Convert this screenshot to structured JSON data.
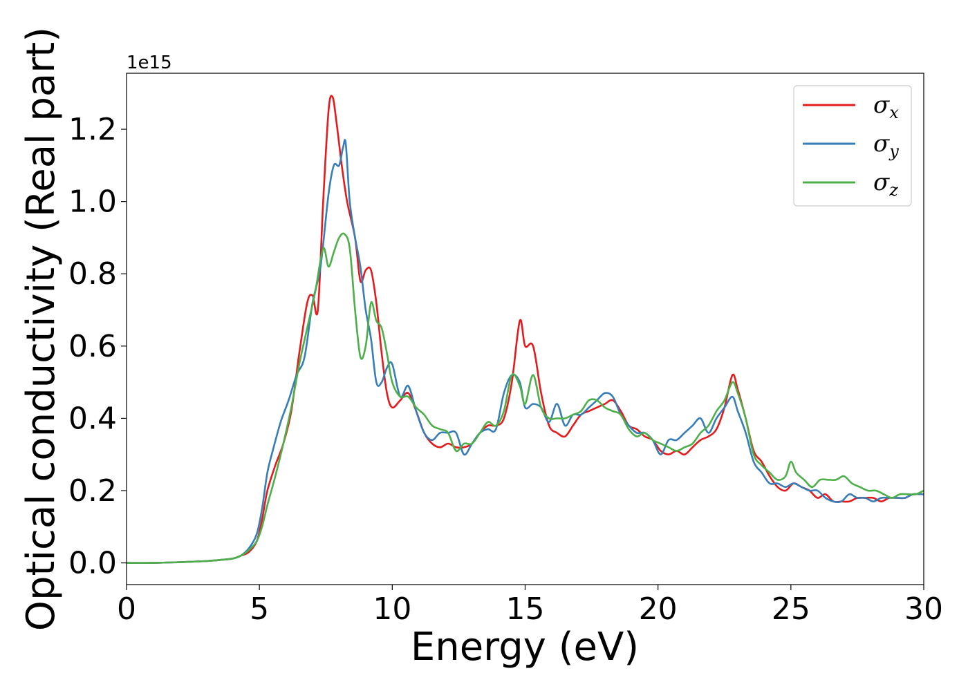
{
  "chart_data": {
    "type": "line",
    "title": "",
    "xlabel": "Energy (eV)",
    "ylabel": "Optical conductivity (Real part)",
    "y_offset_label": "1e15",
    "xlim": [
      0,
      30
    ],
    "ylim": [
      -0.06,
      1.355
    ],
    "xticks": [
      0,
      5,
      10,
      15,
      20,
      25,
      30
    ],
    "xtick_labels": [
      "0",
      "5",
      "10",
      "15",
      "20",
      "25",
      "30"
    ],
    "yticks": [
      0.0,
      0.2,
      0.4,
      0.6,
      0.8,
      1.0,
      1.2
    ],
    "ytick_labels": [
      "0.0",
      "0.2",
      "0.4",
      "0.6",
      "0.8",
      "1.0",
      "1.2"
    ],
    "grid": false,
    "legend_position": "top-right",
    "series": [
      {
        "name": "σx",
        "symbol": "σ",
        "subscript": "x",
        "color": "#e41a1c",
        "x": [
          0,
          1,
          2,
          3,
          3.5,
          4,
          4.3,
          4.6,
          4.9,
          5.1,
          5.3,
          5.6,
          5.9,
          6.2,
          6.5,
          6.8,
          7.0,
          7.2,
          7.4,
          7.6,
          7.75,
          7.9,
          8.1,
          8.3,
          8.6,
          8.8,
          9.0,
          9.2,
          9.4,
          9.6,
          9.8,
          10.0,
          10.3,
          10.6,
          10.9,
          11.2,
          11.5,
          11.8,
          12.1,
          12.4,
          12.7,
          13.0,
          13.3,
          13.6,
          13.9,
          14.2,
          14.5,
          14.8,
          15.0,
          15.3,
          15.6,
          15.9,
          16.2,
          16.5,
          16.8,
          17.1,
          17.4,
          17.7,
          18.0,
          18.3,
          18.6,
          18.9,
          19.2,
          19.5,
          19.8,
          20.1,
          20.4,
          20.7,
          21.0,
          21.3,
          21.6,
          21.9,
          22.2,
          22.5,
          22.8,
          23.0,
          23.3,
          23.6,
          23.9,
          24.2,
          24.5,
          24.8,
          25.1,
          25.4,
          25.7,
          26.0,
          26.3,
          26.6,
          26.9,
          27.2,
          27.5,
          27.8,
          28.1,
          28.4,
          28.7,
          29.0,
          29.3,
          29.6,
          30.0
        ],
        "y": [
          0.0,
          0.0,
          0.002,
          0.005,
          0.008,
          0.012,
          0.02,
          0.03,
          0.06,
          0.12,
          0.2,
          0.27,
          0.33,
          0.42,
          0.58,
          0.72,
          0.74,
          0.7,
          1.0,
          1.25,
          1.29,
          1.22,
          1.1,
          1.0,
          0.9,
          0.78,
          0.81,
          0.81,
          0.72,
          0.58,
          0.47,
          0.43,
          0.45,
          0.47,
          0.42,
          0.36,
          0.33,
          0.32,
          0.33,
          0.32,
          0.32,
          0.33,
          0.36,
          0.38,
          0.38,
          0.4,
          0.5,
          0.67,
          0.6,
          0.6,
          0.47,
          0.38,
          0.36,
          0.35,
          0.38,
          0.41,
          0.42,
          0.43,
          0.44,
          0.45,
          0.42,
          0.38,
          0.37,
          0.35,
          0.34,
          0.31,
          0.3,
          0.31,
          0.3,
          0.32,
          0.34,
          0.35,
          0.37,
          0.43,
          0.52,
          0.48,
          0.4,
          0.31,
          0.28,
          0.24,
          0.21,
          0.2,
          0.22,
          0.21,
          0.2,
          0.18,
          0.19,
          0.17,
          0.17,
          0.17,
          0.18,
          0.18,
          0.18,
          0.17,
          0.18,
          0.18,
          0.18,
          0.19,
          0.19
        ]
      },
      {
        "name": "σy",
        "symbol": "σ",
        "subscript": "y",
        "color": "#377eb8",
        "x": [
          0,
          1,
          2,
          3,
          3.5,
          4,
          4.3,
          4.6,
          4.9,
          5.1,
          5.3,
          5.5,
          5.8,
          6.1,
          6.4,
          6.7,
          7.0,
          7.3,
          7.6,
          7.8,
          8.0,
          8.15,
          8.25,
          8.4,
          8.6,
          8.8,
          9.0,
          9.2,
          9.4,
          9.6,
          9.8,
          10.0,
          10.3,
          10.6,
          10.9,
          11.2,
          11.5,
          11.8,
          12.1,
          12.4,
          12.7,
          13.0,
          13.3,
          13.6,
          13.9,
          14.2,
          14.5,
          14.8,
          15.0,
          15.3,
          15.6,
          15.9,
          16.2,
          16.5,
          16.8,
          17.1,
          17.4,
          17.7,
          18.0,
          18.3,
          18.6,
          18.9,
          19.2,
          19.5,
          19.8,
          20.1,
          20.4,
          20.7,
          21.0,
          21.3,
          21.6,
          21.9,
          22.2,
          22.5,
          22.8,
          23.0,
          23.3,
          23.6,
          23.9,
          24.2,
          24.5,
          24.8,
          25.1,
          25.4,
          25.7,
          26.0,
          26.3,
          26.6,
          26.9,
          27.2,
          27.5,
          27.8,
          28.1,
          28.4,
          28.7,
          29.0,
          29.3,
          29.6,
          30.0
        ],
        "y": [
          0.0,
          0.0,
          0.002,
          0.005,
          0.008,
          0.012,
          0.02,
          0.04,
          0.08,
          0.15,
          0.25,
          0.31,
          0.39,
          0.45,
          0.52,
          0.57,
          0.72,
          0.82,
          1.02,
          1.1,
          1.1,
          1.15,
          1.16,
          1.0,
          0.9,
          0.82,
          0.7,
          0.62,
          0.5,
          0.5,
          0.54,
          0.55,
          0.46,
          0.49,
          0.42,
          0.36,
          0.34,
          0.36,
          0.36,
          0.36,
          0.3,
          0.33,
          0.36,
          0.37,
          0.37,
          0.47,
          0.52,
          0.5,
          0.43,
          0.44,
          0.43,
          0.39,
          0.44,
          0.38,
          0.41,
          0.41,
          0.43,
          0.45,
          0.47,
          0.46,
          0.41,
          0.38,
          0.36,
          0.36,
          0.34,
          0.3,
          0.34,
          0.34,
          0.36,
          0.38,
          0.4,
          0.36,
          0.4,
          0.43,
          0.46,
          0.42,
          0.36,
          0.28,
          0.25,
          0.22,
          0.22,
          0.21,
          0.22,
          0.21,
          0.2,
          0.2,
          0.18,
          0.17,
          0.17,
          0.19,
          0.18,
          0.18,
          0.17,
          0.18,
          0.18,
          0.18,
          0.18,
          0.19,
          0.19
        ]
      },
      {
        "name": "σz",
        "symbol": "σ",
        "subscript": "z",
        "color": "#4daf4a",
        "x": [
          0,
          1,
          2,
          3,
          3.5,
          4,
          4.3,
          4.6,
          4.9,
          5.1,
          5.3,
          5.6,
          5.9,
          6.2,
          6.5,
          6.8,
          7.1,
          7.4,
          7.6,
          7.8,
          8.0,
          8.2,
          8.4,
          8.6,
          8.8,
          9.0,
          9.2,
          9.4,
          9.6,
          9.8,
          10.0,
          10.3,
          10.6,
          10.9,
          11.2,
          11.5,
          11.8,
          12.1,
          12.4,
          12.7,
          13.0,
          13.3,
          13.6,
          13.9,
          14.2,
          14.5,
          14.8,
          15.0,
          15.3,
          15.6,
          15.9,
          16.2,
          16.5,
          16.8,
          17.1,
          17.4,
          17.7,
          18.0,
          18.3,
          18.6,
          18.9,
          19.2,
          19.5,
          19.8,
          20.1,
          20.4,
          20.7,
          21.0,
          21.3,
          21.6,
          21.9,
          22.2,
          22.5,
          22.8,
          23.0,
          23.3,
          23.6,
          23.9,
          24.2,
          24.5,
          24.8,
          25.0,
          25.2,
          25.5,
          25.8,
          26.1,
          26.4,
          26.7,
          27.0,
          27.3,
          27.6,
          27.9,
          28.2,
          28.5,
          28.8,
          29.1,
          29.4,
          29.7,
          30.0
        ],
        "y": [
          0.0,
          0.0,
          0.002,
          0.005,
          0.008,
          0.012,
          0.02,
          0.035,
          0.06,
          0.1,
          0.16,
          0.24,
          0.33,
          0.43,
          0.55,
          0.65,
          0.75,
          0.87,
          0.82,
          0.86,
          0.9,
          0.91,
          0.87,
          0.7,
          0.57,
          0.6,
          0.72,
          0.67,
          0.65,
          0.58,
          0.5,
          0.46,
          0.46,
          0.43,
          0.41,
          0.38,
          0.37,
          0.36,
          0.31,
          0.33,
          0.33,
          0.36,
          0.39,
          0.38,
          0.42,
          0.52,
          0.49,
          0.44,
          0.52,
          0.43,
          0.4,
          0.4,
          0.4,
          0.41,
          0.42,
          0.45,
          0.45,
          0.43,
          0.42,
          0.41,
          0.37,
          0.35,
          0.36,
          0.34,
          0.33,
          0.32,
          0.31,
          0.32,
          0.33,
          0.36,
          0.38,
          0.42,
          0.45,
          0.5,
          0.47,
          0.4,
          0.3,
          0.27,
          0.25,
          0.23,
          0.24,
          0.28,
          0.25,
          0.23,
          0.21,
          0.23,
          0.23,
          0.23,
          0.24,
          0.22,
          0.21,
          0.2,
          0.2,
          0.19,
          0.18,
          0.19,
          0.19,
          0.19,
          0.2
        ]
      }
    ]
  }
}
